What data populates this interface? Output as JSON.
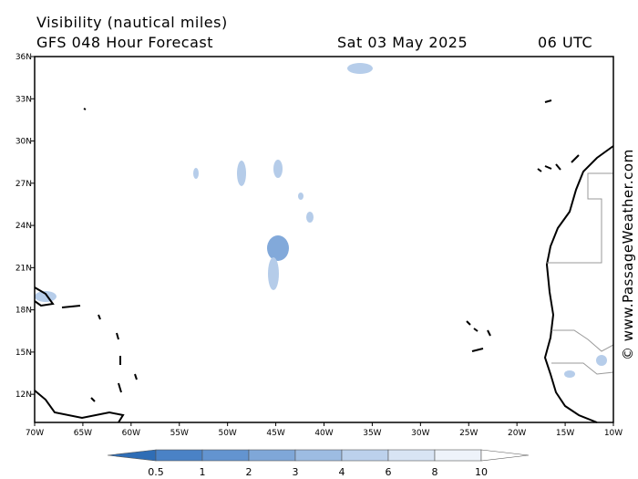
{
  "header": {
    "title": "Visibility (nautical miles)",
    "model": "GFS 048 Hour Forecast",
    "date": "Sat 03 May 2025",
    "time": "06 UTC"
  },
  "map": {
    "xlim": [
      -70,
      -10
    ],
    "ylim": [
      10,
      36
    ],
    "xticks": [
      {
        "value": -70,
        "label": "70W"
      },
      {
        "value": -65,
        "label": "65W"
      },
      {
        "value": -60,
        "label": "60W"
      },
      {
        "value": -55,
        "label": "55W"
      },
      {
        "value": -50,
        "label": "50W"
      },
      {
        "value": -45,
        "label": "45W"
      },
      {
        "value": -40,
        "label": "40W"
      },
      {
        "value": -35,
        "label": "35W"
      },
      {
        "value": -30,
        "label": "30W"
      },
      {
        "value": -25,
        "label": "25W"
      },
      {
        "value": -20,
        "label": "20W"
      },
      {
        "value": -15,
        "label": "15W"
      },
      {
        "value": -10,
        "label": "10W"
      }
    ],
    "yticks": [
      {
        "value": 36,
        "label": "36N"
      },
      {
        "value": 33,
        "label": "33N"
      },
      {
        "value": 30,
        "label": "30N"
      },
      {
        "value": 27,
        "label": "27N"
      },
      {
        "value": 24,
        "label": "24N"
      },
      {
        "value": 21,
        "label": "21N"
      },
      {
        "value": 18,
        "label": "18N"
      },
      {
        "value": 15,
        "label": "15N"
      },
      {
        "value": 12,
        "label": "12N"
      }
    ]
  },
  "colorbar": {
    "ticks": [
      0.5,
      1,
      2,
      3,
      4,
      6,
      8,
      10
    ],
    "colors": [
      "#2f6db5",
      "#4a82c6",
      "#6394d0",
      "#7fa7d8",
      "#9dbce2",
      "#bcd1ec",
      "#d8e4f4",
      "#eef3fa",
      "#ffffff"
    ]
  },
  "watermark": "© www.PassageWeather.com"
}
